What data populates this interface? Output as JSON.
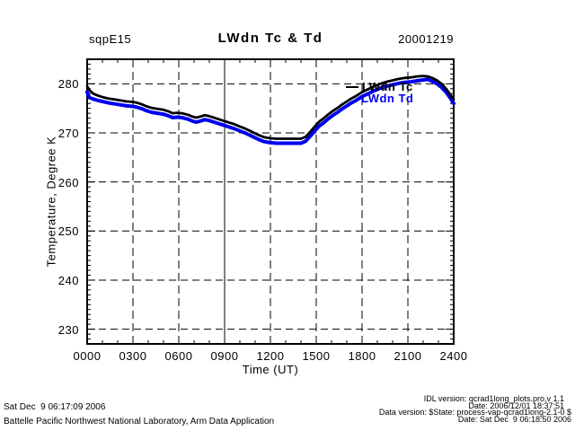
{
  "header": {
    "site": "sqpE15",
    "title": "LWdn Tc & Td",
    "date": "20001219"
  },
  "footer": {
    "left_line1": "Sat Dec  9 06:17:09 2006",
    "left_line2": "Battelle Pacific Northwest National Laboratory, Arm Data Application",
    "right": [
      "IDL version: qcrad1long_plots.pro,v 1.1",
      "Date: 2006/12/01 18:37:51",
      "Data version: $State: process-vap-qcrad1long-2.1-0 $",
      "Date: Sat Dec  9 06:18:50 2006"
    ]
  },
  "colors": {
    "tc": "#000000",
    "td": "#0000EE",
    "grid": "#000000",
    "background": "#ffffff"
  },
  "chart_data": {
    "type": "line",
    "title": "LWdn Tc & Td",
    "site": "sqpE15",
    "date": "20001219",
    "xlabel": "Time (UT)",
    "ylabel": "Temperature, Degree K",
    "xlim": [
      0,
      24
    ],
    "ylim": [
      227,
      285
    ],
    "x_ticks_hours": [
      0,
      3,
      6,
      9,
      12,
      15,
      18,
      21,
      24
    ],
    "x_tick_labels": [
      "0000",
      "0300",
      "0600",
      "0900",
      "1200",
      "1500",
      "1800",
      "2100",
      "2400"
    ],
    "y_ticks": [
      230,
      240,
      250,
      260,
      270,
      280
    ],
    "grid": "dashed",
    "solid_gridline_hour": 9,
    "legend_position": "upper-right-inside",
    "series": [
      {
        "name": "LWdn Tc",
        "color": "#000000",
        "units": "Degree K",
        "points": [
          [
            0,
            279.5
          ],
          [
            0.15,
            278.7
          ],
          [
            0.4,
            278.0
          ],
          [
            0.7,
            277.6
          ],
          [
            1.0,
            277.3
          ],
          [
            1.4,
            277.0
          ],
          [
            1.8,
            276.8
          ],
          [
            2.2,
            276.6
          ],
          [
            2.6,
            276.4
          ],
          [
            3.0,
            276.3
          ],
          [
            3.3,
            276.1
          ],
          [
            3.6,
            275.8
          ],
          [
            3.9,
            275.4
          ],
          [
            4.2,
            275.1
          ],
          [
            4.6,
            274.9
          ],
          [
            5.0,
            274.7
          ],
          [
            5.3,
            274.4
          ],
          [
            5.6,
            274.0
          ],
          [
            5.9,
            274.1
          ],
          [
            6.2,
            274.0
          ],
          [
            6.6,
            273.7
          ],
          [
            6.9,
            273.3
          ],
          [
            7.15,
            273.1
          ],
          [
            7.4,
            273.3
          ],
          [
            7.7,
            273.6
          ],
          [
            8.0,
            273.4
          ],
          [
            8.4,
            273.0
          ],
          [
            8.8,
            272.6
          ],
          [
            9.2,
            272.2
          ],
          [
            9.6,
            271.8
          ],
          [
            10.0,
            271.3
          ],
          [
            10.4,
            270.8
          ],
          [
            10.8,
            270.2
          ],
          [
            11.2,
            269.6
          ],
          [
            11.6,
            269.1
          ],
          [
            12.0,
            268.9
          ],
          [
            12.4,
            268.8
          ],
          [
            12.8,
            268.8
          ],
          [
            13.2,
            268.8
          ],
          [
            13.6,
            268.8
          ],
          [
            14.0,
            268.8
          ],
          [
            14.3,
            269.2
          ],
          [
            14.6,
            270.2
          ],
          [
            14.9,
            271.3
          ],
          [
            15.2,
            272.3
          ],
          [
            15.5,
            273.0
          ],
          [
            15.8,
            273.8
          ],
          [
            16.1,
            274.5
          ],
          [
            16.4,
            275.1
          ],
          [
            16.7,
            275.8
          ],
          [
            17.0,
            276.4
          ],
          [
            17.3,
            277.0
          ],
          [
            17.6,
            277.5
          ],
          [
            18.0,
            278.3
          ],
          [
            18.4,
            278.9
          ],
          [
            18.8,
            279.5
          ],
          [
            19.2,
            280.0
          ],
          [
            19.6,
            280.4
          ],
          [
            20.0,
            280.7
          ],
          [
            20.4,
            281.0
          ],
          [
            20.8,
            281.2
          ],
          [
            21.2,
            281.3
          ],
          [
            21.6,
            281.5
          ],
          [
            22.0,
            281.6
          ],
          [
            22.3,
            281.5
          ],
          [
            22.6,
            281.2
          ],
          [
            22.9,
            280.7
          ],
          [
            23.2,
            280.0
          ],
          [
            23.5,
            279.0
          ],
          [
            23.75,
            277.9
          ],
          [
            24,
            276.8
          ]
        ]
      },
      {
        "name": "LWdn Td",
        "color": "#0000EE",
        "units": "Degree K",
        "points": [
          [
            0,
            278.3
          ],
          [
            0.15,
            277.2
          ],
          [
            0.4,
            276.9
          ],
          [
            0.7,
            276.6
          ],
          [
            1.0,
            276.4
          ],
          [
            1.4,
            276.1
          ],
          [
            1.8,
            275.9
          ],
          [
            2.2,
            275.7
          ],
          [
            2.6,
            275.5
          ],
          [
            3.0,
            275.4
          ],
          [
            3.3,
            275.2
          ],
          [
            3.6,
            274.9
          ],
          [
            3.9,
            274.5
          ],
          [
            4.2,
            274.2
          ],
          [
            4.6,
            274.0
          ],
          [
            5.0,
            273.8
          ],
          [
            5.3,
            273.5
          ],
          [
            5.6,
            273.1
          ],
          [
            5.9,
            273.2
          ],
          [
            6.2,
            273.1
          ],
          [
            6.6,
            272.8
          ],
          [
            6.9,
            272.4
          ],
          [
            7.15,
            272.2
          ],
          [
            7.4,
            272.4
          ],
          [
            7.7,
            272.7
          ],
          [
            8.0,
            272.5
          ],
          [
            8.4,
            272.1
          ],
          [
            8.8,
            271.7
          ],
          [
            9.2,
            271.3
          ],
          [
            9.6,
            270.9
          ],
          [
            10.0,
            270.4
          ],
          [
            10.4,
            269.9
          ],
          [
            10.8,
            269.3
          ],
          [
            11.2,
            268.7
          ],
          [
            11.6,
            268.2
          ],
          [
            12.0,
            268.0
          ],
          [
            12.4,
            267.9
          ],
          [
            12.8,
            267.9
          ],
          [
            13.2,
            267.9
          ],
          [
            13.6,
            267.9
          ],
          [
            14.0,
            267.9
          ],
          [
            14.3,
            268.3
          ],
          [
            14.6,
            269.3
          ],
          [
            14.9,
            270.4
          ],
          [
            15.2,
            271.4
          ],
          [
            15.5,
            272.1
          ],
          [
            15.8,
            272.9
          ],
          [
            16.1,
            273.6
          ],
          [
            16.4,
            274.2
          ],
          [
            16.7,
            274.9
          ],
          [
            17.0,
            275.5
          ],
          [
            17.3,
            276.1
          ],
          [
            17.6,
            276.6
          ],
          [
            18.0,
            277.4
          ],
          [
            18.4,
            278.0
          ],
          [
            18.8,
            278.6
          ],
          [
            19.2,
            279.1
          ],
          [
            19.6,
            279.5
          ],
          [
            20.0,
            279.8
          ],
          [
            20.4,
            280.1
          ],
          [
            20.8,
            280.3
          ],
          [
            21.2,
            280.4
          ],
          [
            21.6,
            280.6
          ],
          [
            22.0,
            280.8
          ],
          [
            22.3,
            280.9
          ],
          [
            22.6,
            280.5
          ],
          [
            22.9,
            280.0
          ],
          [
            23.2,
            279.3
          ],
          [
            23.5,
            278.3
          ],
          [
            23.75,
            277.2
          ],
          [
            24,
            276.0
          ]
        ]
      }
    ]
  }
}
